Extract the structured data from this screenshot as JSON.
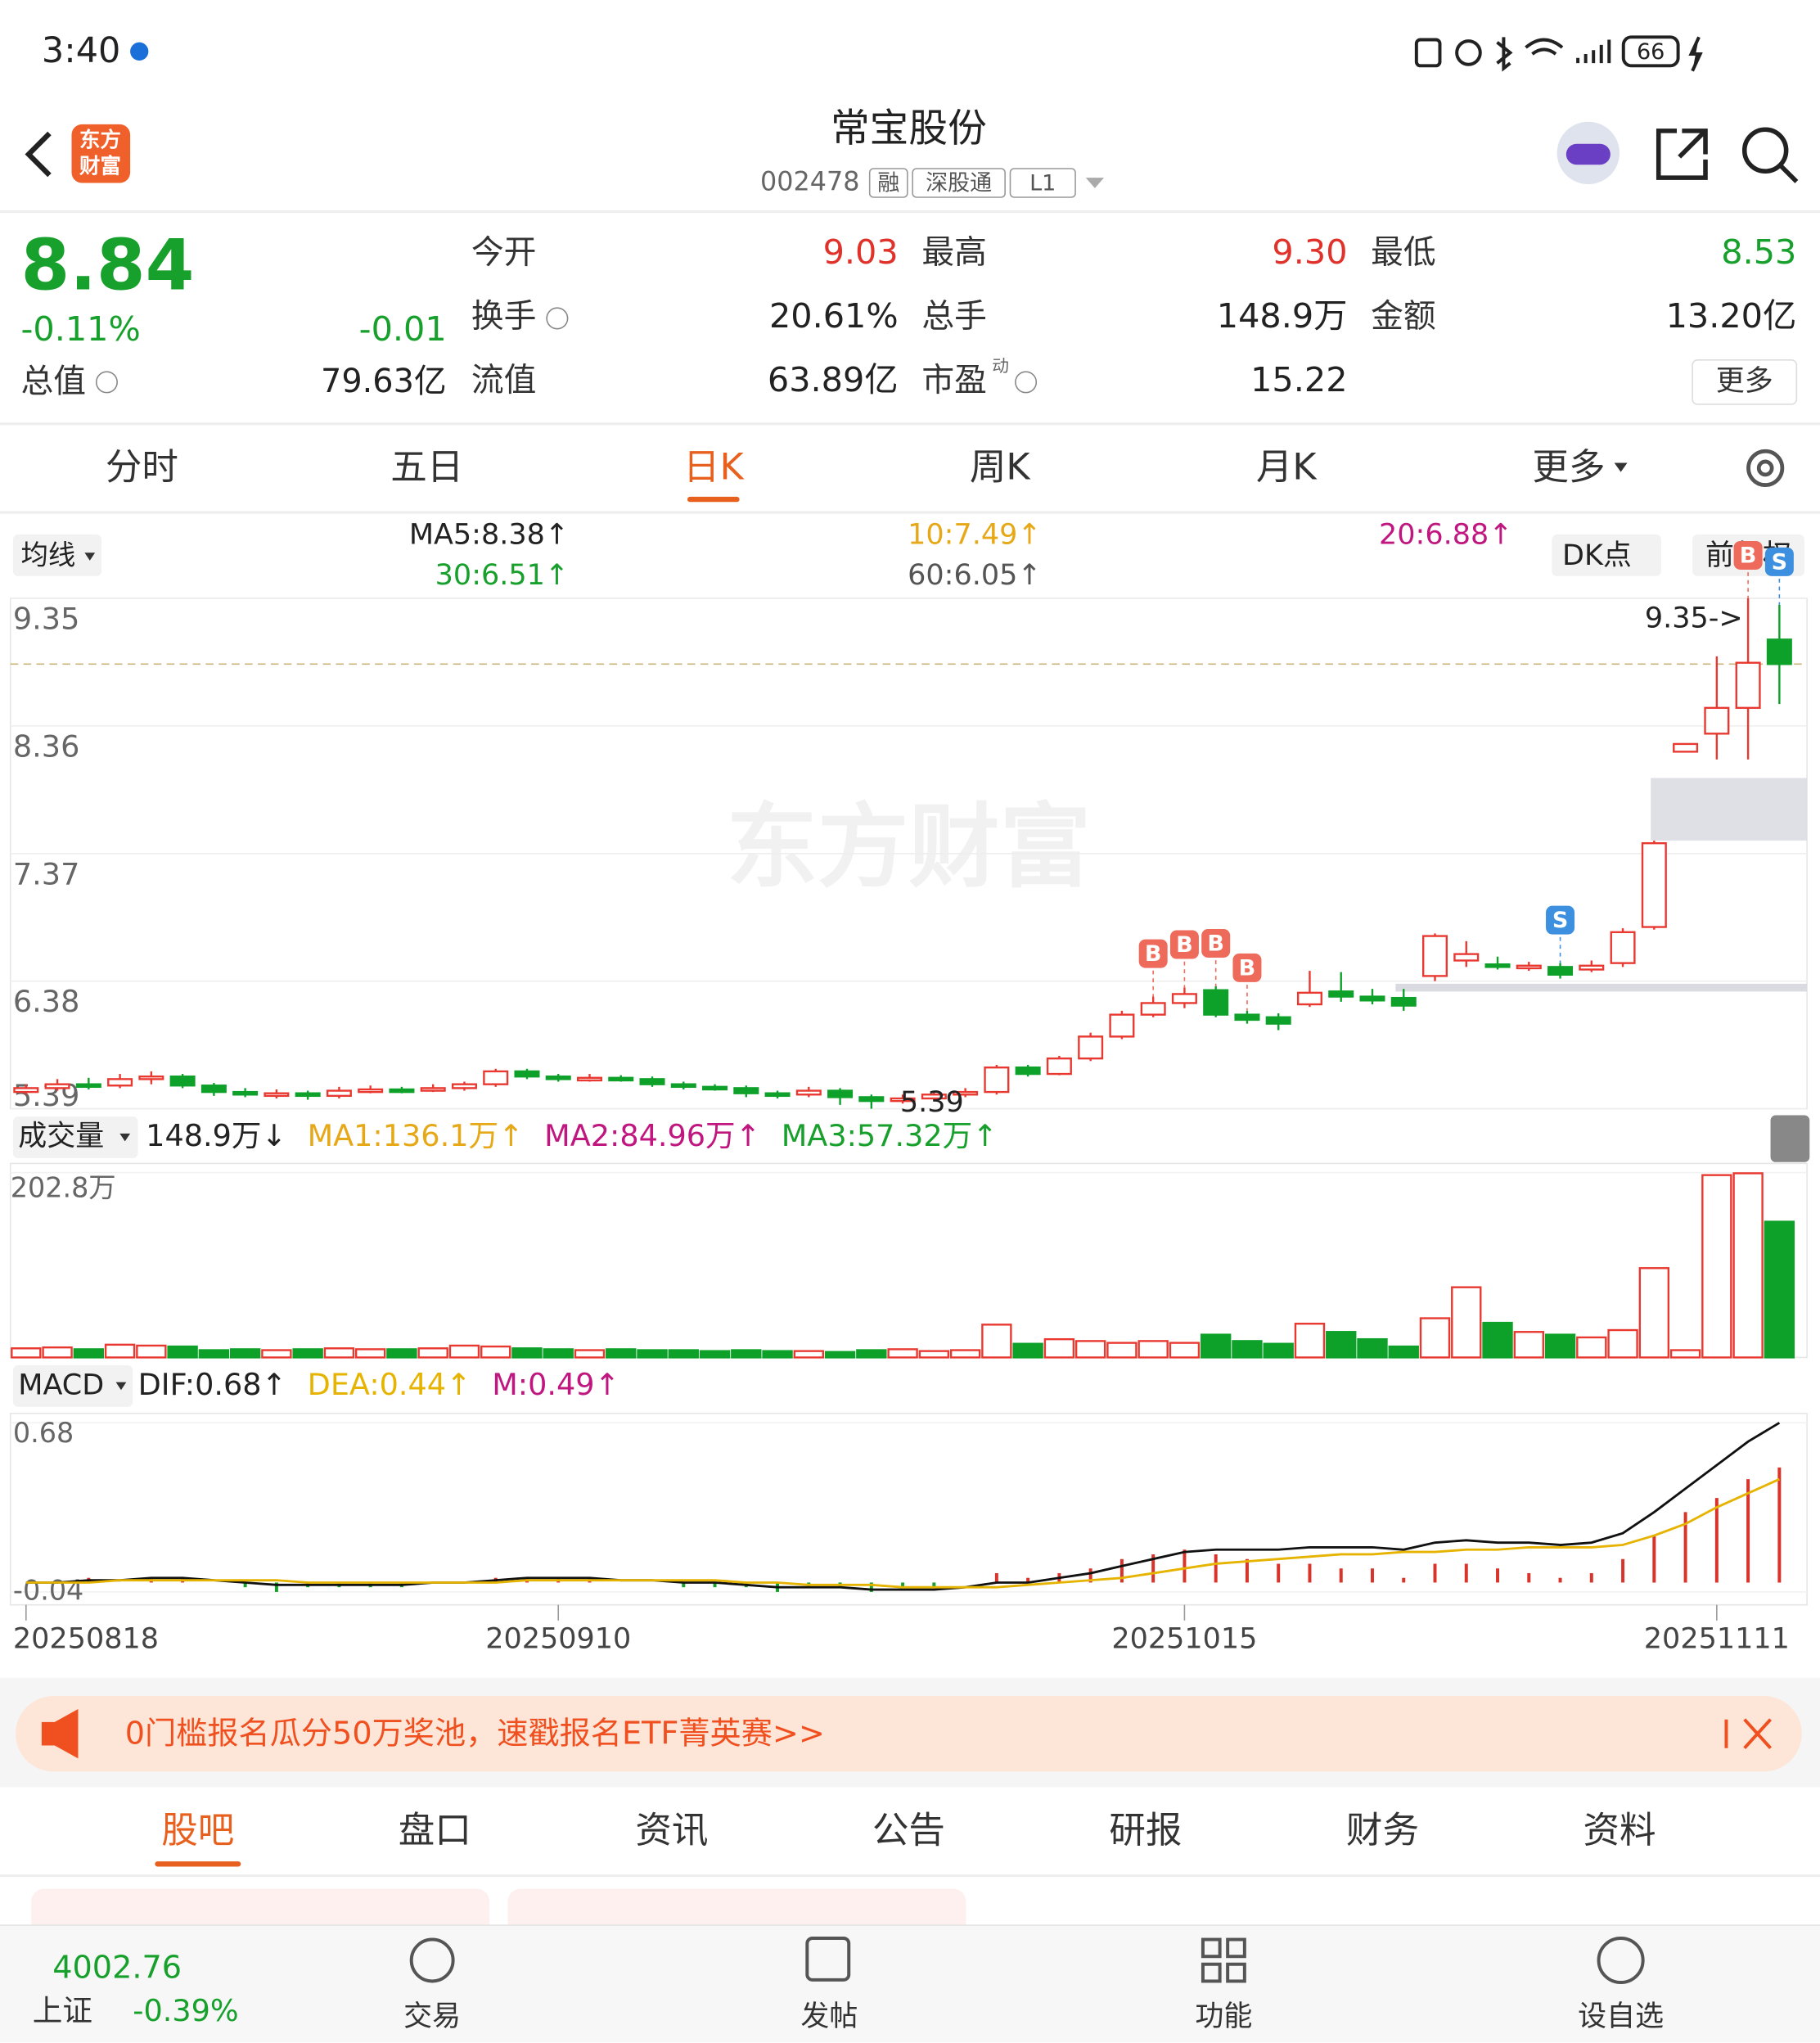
{
  "status_bar": {
    "time": "3:40",
    "battery": "66"
  },
  "header": {
    "logo": [
      "东方",
      "财富"
    ],
    "title": "常宝股份",
    "code": "002478",
    "badges": [
      "融",
      "深股通",
      "L1"
    ]
  },
  "quote": {
    "price": "8.84",
    "change_pct": "-0.11%",
    "change": "-0.01",
    "market_cap_label": "总值",
    "market_cap": "79.63亿",
    "fields": [
      {
        "label": "今开",
        "value": "9.03",
        "color": "#e0312a"
      },
      {
        "label": "最高",
        "value": "9.30",
        "color": "#e0312a"
      },
      {
        "label": "最低",
        "value": "8.53",
        "color": "#17a02b"
      },
      {
        "label": "换手",
        "value": "20.61%"
      },
      {
        "label": "总手",
        "value": "148.9万"
      },
      {
        "label": "金额",
        "value": "13.20亿"
      },
      {
        "label": "流值",
        "value": "63.89亿"
      },
      {
        "label": "市盈",
        "label_sup": "动",
        "value": "15.22"
      }
    ],
    "more": "更多"
  },
  "tabs": {
    "items": [
      "分时",
      "五日",
      "日K",
      "周K",
      "月K",
      "更多"
    ],
    "active": 2
  },
  "ma_bar": {
    "selector": "均线",
    "items": [
      {
        "text": "MA5:8.38↑",
        "color": "#222222"
      },
      {
        "text": "10:7.49↑",
        "color": "#e6a817"
      },
      {
        "text": "20:6.88↑",
        "color": "#c0167f"
      },
      {
        "text": "30:6.51↑",
        "color": "#18a02c"
      },
      {
        "text": "60:6.05↑",
        "color": "#555555"
      }
    ],
    "dk": "DK点",
    "adjust": "前复权"
  },
  "chart_data": [
    {
      "type": "candlestick",
      "watermark": "东方财富",
      "categories": [
        "20250818",
        null,
        null,
        null,
        null,
        null,
        null,
        null,
        null,
        null,
        null,
        null,
        null,
        null,
        null,
        null,
        null,
        "20250910",
        null,
        null,
        null,
        null,
        null,
        null,
        null,
        null,
        null,
        null,
        null,
        null,
        null,
        null,
        null,
        null,
        null,
        null,
        null,
        "20251015",
        null,
        null,
        null,
        null,
        null,
        null,
        null,
        null,
        null,
        null,
        null,
        null,
        null,
        null,
        null,
        null,
        "20251111",
        null,
        null
      ],
      "open": [
        5.52,
        5.55,
        5.58,
        5.57,
        5.62,
        5.64,
        5.57,
        5.52,
        5.5,
        5.51,
        5.49,
        5.53,
        5.54,
        5.53,
        5.55,
        5.58,
        5.68,
        5.64,
        5.62,
        5.63,
        5.62,
        5.58,
        5.56,
        5.55,
        5.51,
        5.5,
        5.53,
        5.48,
        5.45,
        5.47,
        5.5,
        5.52,
        5.71,
        5.66,
        5.78,
        5.95,
        6.12,
        6.21,
        6.31,
        6.12,
        6.1,
        6.2,
        6.3,
        6.26,
        6.25,
        6.42,
        6.54,
        6.51,
        6.48,
        6.49,
        6.47,
        6.52,
        6.8,
        8.16,
        8.3,
        8.5,
        9.03
      ],
      "high": [
        5.58,
        5.62,
        5.63,
        5.66,
        5.68,
        5.66,
        5.59,
        5.55,
        5.54,
        5.53,
        5.56,
        5.57,
        5.56,
        5.58,
        5.6,
        5.7,
        5.7,
        5.66,
        5.66,
        5.65,
        5.64,
        5.6,
        5.58,
        5.57,
        5.53,
        5.56,
        5.55,
        5.5,
        5.5,
        5.52,
        5.55,
        5.73,
        5.73,
        5.8,
        5.98,
        6.15,
        6.26,
        6.33,
        6.34,
        6.15,
        6.13,
        6.46,
        6.45,
        6.32,
        6.32,
        6.75,
        6.69,
        6.57,
        6.53,
        6.52,
        6.54,
        6.79,
        7.47,
        8.22,
        8.9,
        9.35,
        9.3
      ],
      "low": [
        5.5,
        5.53,
        5.54,
        5.55,
        5.58,
        5.55,
        5.49,
        5.48,
        5.47,
        5.46,
        5.47,
        5.51,
        5.51,
        5.52,
        5.53,
        5.56,
        5.62,
        5.6,
        5.6,
        5.6,
        5.56,
        5.54,
        5.53,
        5.48,
        5.47,
        5.48,
        5.42,
        5.39,
        5.43,
        5.45,
        5.48,
        5.5,
        5.64,
        5.65,
        5.76,
        5.93,
        6.1,
        6.17,
        6.1,
        6.05,
        6.0,
        6.18,
        6.22,
        6.2,
        6.15,
        6.38,
        6.49,
        6.47,
        6.46,
        6.4,
        6.45,
        6.49,
        6.78,
        8.16,
        8.1,
        8.1,
        8.53
      ],
      "close": [
        5.55,
        5.58,
        5.57,
        5.62,
        5.64,
        5.57,
        5.52,
        5.5,
        5.51,
        5.49,
        5.53,
        5.54,
        5.53,
        5.55,
        5.58,
        5.68,
        5.64,
        5.62,
        5.63,
        5.62,
        5.58,
        5.56,
        5.55,
        5.51,
        5.5,
        5.53,
        5.48,
        5.45,
        5.47,
        5.5,
        5.52,
        5.71,
        5.66,
        5.78,
        5.95,
        6.12,
        6.21,
        6.28,
        6.12,
        6.08,
        6.05,
        6.29,
        6.26,
        6.23,
        6.19,
        6.73,
        6.59,
        6.49,
        6.5,
        6.43,
        6.5,
        6.76,
        7.45,
        8.22,
        8.5,
        8.85,
        8.84
      ],
      "up_color": "#e8382f",
      "down_color": "#0ea12a",
      "ylim": [
        5.39,
        9.35
      ],
      "yticks": [
        9.35,
        8.36,
        7.37,
        6.38,
        5.39
      ],
      "grid": true,
      "last_price": 8.84,
      "max_label": "9.35->",
      "min_label": "5.39",
      "signals": [
        {
          "label": "B",
          "index": 36
        },
        {
          "label": "B",
          "index": 37
        },
        {
          "label": "B",
          "index": 38
        },
        {
          "label": "B",
          "index": 39
        },
        {
          "label": "S",
          "index": 49
        },
        {
          "label": "B",
          "index": 55
        },
        {
          "label": "S",
          "index": 56
        }
      ]
    },
    {
      "type": "bar",
      "title": "成交量",
      "legend": [
        {
          "text": "148.9万↓",
          "color": "#222222"
        },
        {
          "text": "MA1:136.1万↑",
          "color": "#e6a817"
        },
        {
          "text": "MA2:84.96万↑",
          "color": "#c0167f"
        },
        {
          "text": "MA3:57.32万↑",
          "color": "#18a02c"
        }
      ],
      "values": [
        10,
        11,
        9,
        14,
        13,
        12,
        8,
        9,
        8,
        9,
        10,
        9,
        9,
        10,
        13,
        12,
        10,
        9,
        8,
        9,
        8,
        8,
        7,
        8,
        7,
        7,
        6,
        8,
        9,
        7,
        8,
        36,
        15,
        20,
        18,
        16,
        18,
        16,
        25,
        18,
        15,
        37,
        28,
        20,
        12,
        43,
        77,
        38,
        28,
        25,
        22,
        30,
        98,
        8,
        200,
        202,
        148.9
      ],
      "ylim": [
        0,
        202.8
      ],
      "yticks": [
        {
          "value": 202.8,
          "label": "202.8万"
        }
      ]
    },
    {
      "type": "macd",
      "title": "MACD",
      "legend": [
        {
          "text": "DIF:0.68↑",
          "color": "#222222"
        },
        {
          "text": "DEA:0.44↑",
          "color": "#e6b400"
        },
        {
          "text": "M:0.49↑",
          "color": "#c0167f"
        }
      ],
      "dif": [
        0.0,
        0.0,
        0.01,
        0.01,
        0.02,
        0.02,
        0.01,
        0.0,
        -0.01,
        -0.01,
        -0.01,
        -0.01,
        -0.01,
        0.0,
        0.0,
        0.01,
        0.02,
        0.02,
        0.02,
        0.01,
        0.01,
        0.0,
        0.0,
        -0.01,
        -0.02,
        -0.02,
        -0.02,
        -0.03,
        -0.03,
        -0.03,
        -0.02,
        0.0,
        0.0,
        0.02,
        0.04,
        0.07,
        0.1,
        0.13,
        0.14,
        0.14,
        0.14,
        0.15,
        0.15,
        0.15,
        0.14,
        0.17,
        0.18,
        0.17,
        0.17,
        0.16,
        0.17,
        0.21,
        0.3,
        0.4,
        0.5,
        0.6,
        0.68
      ],
      "dea": [
        0.0,
        0.0,
        0.0,
        0.01,
        0.01,
        0.01,
        0.01,
        0.01,
        0.01,
        0.0,
        0.0,
        0.0,
        0.0,
        0.0,
        0.0,
        0.0,
        0.01,
        0.01,
        0.01,
        0.01,
        0.01,
        0.01,
        0.01,
        0.0,
        0.0,
        -0.01,
        -0.01,
        -0.01,
        -0.02,
        -0.02,
        -0.02,
        -0.02,
        -0.01,
        0.0,
        0.01,
        0.02,
        0.04,
        0.06,
        0.08,
        0.09,
        0.1,
        0.11,
        0.12,
        0.12,
        0.13,
        0.13,
        0.14,
        0.14,
        0.15,
        0.15,
        0.15,
        0.16,
        0.2,
        0.25,
        0.32,
        0.38,
        0.44
      ],
      "hist": [
        0,
        0,
        0.02,
        0,
        0.02,
        0.02,
        0,
        -0.02,
        -0.04,
        -0.02,
        -0.02,
        -0.02,
        -0.02,
        0,
        0,
        0.02,
        0.02,
        0.02,
        0.02,
        0,
        0,
        -0.02,
        -0.02,
        -0.02,
        -0.04,
        -0.02,
        -0.02,
        -0.04,
        -0.02,
        -0.02,
        0,
        0.04,
        0.02,
        0.04,
        0.06,
        0.1,
        0.12,
        0.14,
        0.12,
        0.1,
        0.08,
        0.08,
        0.06,
        0.06,
        0.02,
        0.08,
        0.08,
        0.06,
        0.04,
        0.02,
        0.04,
        0.1,
        0.2,
        0.3,
        0.36,
        0.44,
        0.49
      ],
      "ylim": [
        -0.095,
        0.72
      ],
      "yticks": [
        0.68,
        -0.04
      ]
    }
  ],
  "banner": "0门槛报名瓜分50万奖池，速戳报名ETF菁英赛>>",
  "sections": {
    "items": [
      "股吧",
      "盘口",
      "资讯",
      "公告",
      "研报",
      "财务",
      "资料"
    ],
    "active": 0
  },
  "bottom_nav": {
    "index_value": "4002.76",
    "index_name": "上证",
    "index_change": "-0.39%",
    "items": [
      "交易",
      "发帖",
      "功能",
      "设自选"
    ]
  }
}
